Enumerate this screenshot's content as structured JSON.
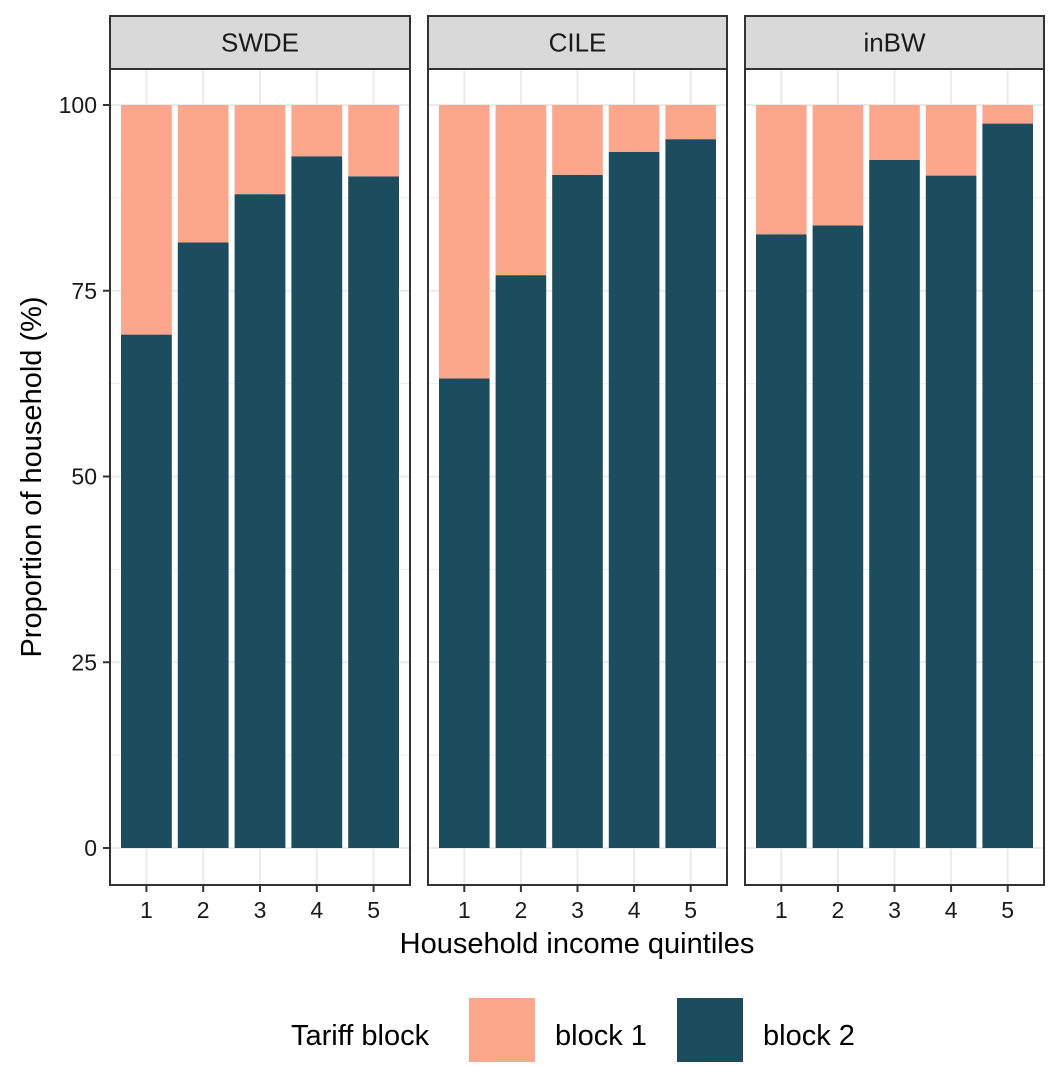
{
  "chart_data": {
    "type": "bar",
    "stacked": true,
    "xlabel": "Household income quintiles",
    "ylabel": "Proportion of household (%)",
    "ylim": [
      0,
      100
    ],
    "yticks": [
      "0",
      "25",
      "50",
      "75",
      "100"
    ],
    "categories": [
      "1",
      "2",
      "3",
      "4",
      "5"
    ],
    "grid": true,
    "legend": {
      "title": "Tariff block",
      "position": "bottom",
      "entries": [
        {
          "name": "block 1",
          "color": "#FCA68B"
        },
        {
          "name": "block 2",
          "color": "#1B4D5F"
        }
      ]
    },
    "panels": [
      {
        "facet": "SWDE",
        "series": [
          {
            "name": "block 2",
            "values": [
              69.1,
              81.5,
              88.0,
              93.1,
              90.4
            ]
          },
          {
            "name": "block 1",
            "values": [
              30.9,
              18.5,
              12.0,
              6.9,
              9.6
            ]
          }
        ]
      },
      {
        "facet": "CILE",
        "series": [
          {
            "name": "block 2",
            "values": [
              63.2,
              77.1,
              90.6,
              93.7,
              95.4
            ]
          },
          {
            "name": "block 1",
            "values": [
              36.8,
              22.9,
              9.4,
              6.3,
              4.6
            ]
          }
        ]
      },
      {
        "facet": "inBW",
        "series": [
          {
            "name": "block 2",
            "values": [
              82.6,
              83.8,
              92.6,
              90.5,
              97.5
            ]
          },
          {
            "name": "block 1",
            "values": [
              17.4,
              16.2,
              7.4,
              9.5,
              2.5
            ]
          }
        ]
      }
    ],
    "colors": {
      "block 1": "#FCA68B",
      "block 2": "#1B4D5F",
      "strip_bg": "#D9D9D9",
      "gridline": "#EBEBEB"
    }
  }
}
